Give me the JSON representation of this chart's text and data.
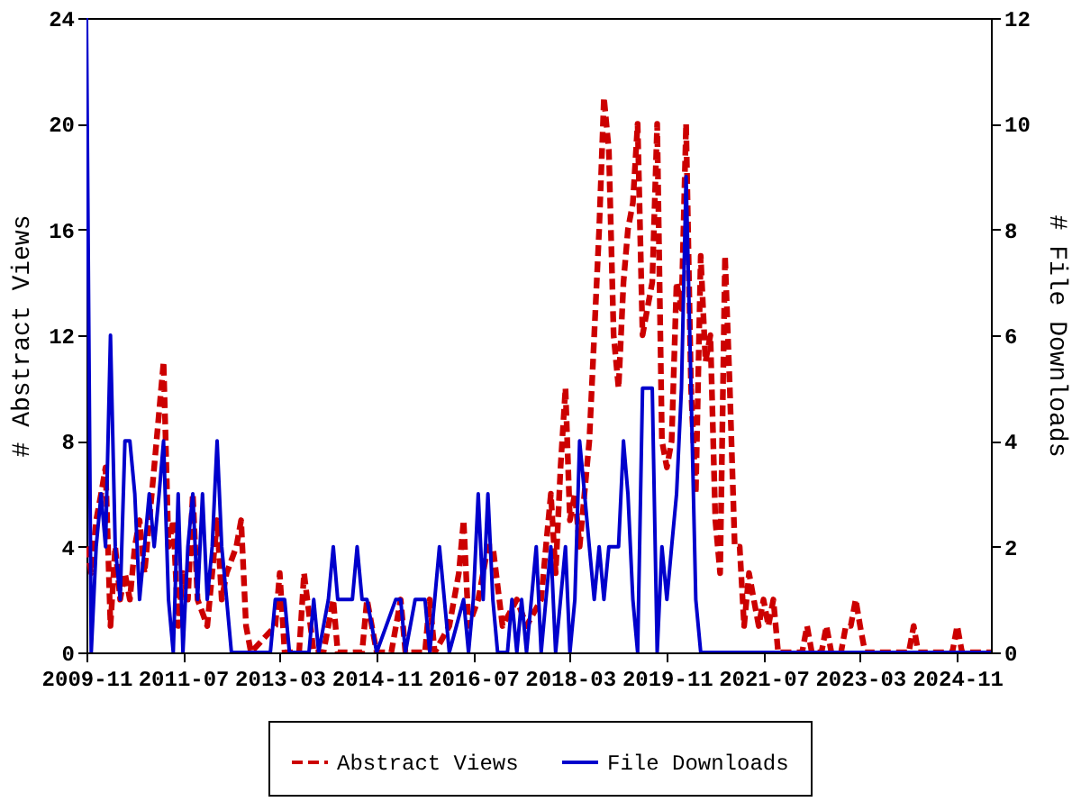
{
  "chart_data": {
    "type": "line",
    "ylabel": "# Abstract Views",
    "y2label": "# File Downloads",
    "xlim": [
      "2009-11",
      "2025-06"
    ],
    "xticks": [
      "2009-11",
      "2011-07",
      "2013-03",
      "2014-11",
      "2016-07",
      "2018-03",
      "2019-11",
      "2021-07",
      "2023-03",
      "2024-11"
    ],
    "ylim": [
      0,
      24
    ],
    "yticks": [
      0,
      4,
      8,
      12,
      16,
      20,
      24
    ],
    "y2lim": [
      0,
      12
    ],
    "y2ticks": [
      0,
      2,
      4,
      6,
      8,
      10,
      12
    ],
    "grid": false,
    "legend": "bottom",
    "series": [
      {
        "name": "Abstract Views",
        "color": "#cc0000",
        "line_style": "dashed",
        "x": [
          "2009-11",
          "2009-12",
          "2010-01",
          "2010-02",
          "2010-03",
          "2010-04",
          "2010-05",
          "2010-06",
          "2010-07",
          "2010-08",
          "2010-09",
          "2010-10",
          "2010-11",
          "2011-01",
          "2011-03",
          "2011-04",
          "2011-05",
          "2011-06",
          "2011-07",
          "2011-08",
          "2011-09",
          "2011-10",
          "2011-12",
          "2012-02",
          "2012-03",
          "2012-04",
          "2012-06",
          "2012-07",
          "2012-08",
          "2012-09",
          "2013-02",
          "2013-03",
          "2013-04",
          "2013-07",
          "2013-08",
          "2013-10",
          "2013-12",
          "2014-02",
          "2014-03",
          "2014-08",
          "2014-09",
          "2014-11",
          "2015-02",
          "2015-04",
          "2015-05",
          "2015-09",
          "2015-10",
          "2015-11",
          "2016-02",
          "2016-04",
          "2016-05",
          "2016-06",
          "2016-08",
          "2016-10",
          "2016-11",
          "2017-01",
          "2017-04",
          "2017-06",
          "2017-09",
          "2017-10",
          "2017-11",
          "2017-12",
          "2018-01",
          "2018-02",
          "2018-03",
          "2018-04",
          "2018-05",
          "2018-07",
          "2018-08",
          "2018-09",
          "2018-10",
          "2018-11",
          "2018-12",
          "2019-01",
          "2019-02",
          "2019-03",
          "2019-04",
          "2019-05",
          "2019-06",
          "2019-07",
          "2019-08",
          "2019-09",
          "2019-10",
          "2019-11",
          "2019-12",
          "2020-01",
          "2020-02",
          "2020-03",
          "2020-04",
          "2020-05",
          "2020-06",
          "2020-07",
          "2020-08",
          "2020-09",
          "2020-10",
          "2020-11",
          "2020-12",
          "2021-01",
          "2021-02",
          "2021-03",
          "2021-04",
          "2021-05",
          "2021-06",
          "2021-07",
          "2021-08",
          "2021-09",
          "2021-10",
          "2022-03",
          "2022-04",
          "2022-05",
          "2022-07",
          "2022-08",
          "2022-09",
          "2022-11",
          "2022-12",
          "2023-01",
          "2023-02",
          "2023-03",
          "2023-04",
          "2024-01",
          "2024-02",
          "2024-03",
          "2024-10",
          "2024-11",
          "2024-12",
          "2025-06"
        ],
        "values": [
          4,
          3,
          5,
          6,
          7,
          1,
          4,
          2,
          3,
          2,
          4,
          5,
          3,
          7,
          11,
          4,
          5,
          1,
          3,
          2,
          6,
          2,
          1,
          5,
          2,
          3,
          4,
          5,
          1,
          0,
          1,
          3,
          0,
          0,
          3,
          0,
          0,
          2,
          0,
          0,
          2,
          0,
          0,
          2,
          0,
          0,
          2,
          0,
          1,
          3,
          5,
          1,
          2,
          4,
          4,
          1,
          2,
          1,
          2,
          4,
          6,
          3,
          7,
          10,
          5,
          6,
          4,
          8,
          12,
          16,
          21,
          19,
          12,
          10,
          14,
          16,
          17,
          20,
          12,
          13,
          14,
          20,
          8,
          7,
          8,
          14,
          13,
          20,
          10,
          6,
          15,
          11,
          12,
          5,
          3,
          15,
          10,
          4,
          4,
          1,
          3,
          2,
          1,
          2,
          1,
          2,
          0,
          0,
          1,
          0,
          0,
          1,
          0,
          0,
          1,
          1,
          2,
          1,
          0,
          0,
          1,
          0,
          0,
          1,
          0,
          0
        ]
      },
      {
        "name": "File Downloads",
        "color": "#0000cc",
        "line_style": "solid",
        "axis": "y2",
        "x": [
          "2009-11",
          "2009-12",
          "2010-01",
          "2010-02",
          "2010-03",
          "2010-04",
          "2010-05",
          "2010-06",
          "2010-07",
          "2010-08",
          "2010-09",
          "2010-10",
          "2010-11",
          "2010-12",
          "2011-01",
          "2011-02",
          "2011-03",
          "2011-04",
          "2011-05",
          "2011-06",
          "2011-07",
          "2011-08",
          "2011-09",
          "2011-10",
          "2011-11",
          "2011-12",
          "2012-01",
          "2012-02",
          "2012-03",
          "2012-04",
          "2012-05",
          "2013-01",
          "2013-02",
          "2013-04",
          "2013-05",
          "2013-09",
          "2013-10",
          "2013-11",
          "2014-01",
          "2014-02",
          "2014-03",
          "2014-06",
          "2014-07",
          "2014-08",
          "2014-09",
          "2014-11",
          "2015-03",
          "2015-04",
          "2015-05",
          "2015-07",
          "2015-09",
          "2015-10",
          "2015-11",
          "2015-12",
          "2016-01",
          "2016-02",
          "2016-05",
          "2016-06",
          "2016-07",
          "2016-08",
          "2016-09",
          "2016-10",
          "2016-11",
          "2016-12",
          "2017-02",
          "2017-03",
          "2017-04",
          "2017-05",
          "2017-06",
          "2017-08",
          "2017-09",
          "2017-10",
          "2017-11",
          "2017-12",
          "2018-01",
          "2018-02",
          "2018-03",
          "2018-04",
          "2018-05",
          "2018-06",
          "2018-07",
          "2018-08",
          "2018-09",
          "2018-10",
          "2018-11",
          "2019-01",
          "2019-02",
          "2019-03",
          "2019-04",
          "2019-05",
          "2019-06",
          "2019-07",
          "2019-08",
          "2019-09",
          "2019-10",
          "2019-11",
          "2019-12",
          "2020-01",
          "2020-02",
          "2020-03",
          "2020-04",
          "2020-05",
          "2020-06",
          "2025-06"
        ],
        "values": [
          12,
          0,
          2,
          3,
          2,
          6,
          2,
          1,
          4,
          4,
          3,
          1,
          2,
          3,
          2,
          3,
          4,
          1,
          0,
          3,
          0,
          2,
          3,
          1,
          3,
          1,
          2,
          4,
          2,
          1,
          0,
          0,
          1,
          1,
          0,
          0,
          1,
          0,
          1,
          2,
          1,
          1,
          2,
          1,
          1,
          0,
          1,
          1,
          0,
          1,
          1,
          0,
          1,
          2,
          1,
          0,
          1,
          0,
          1,
          3,
          1,
          3,
          1,
          0,
          0,
          1,
          0,
          1,
          0,
          2,
          0,
          1,
          2,
          0,
          1,
          2,
          0,
          1,
          4,
          3,
          2,
          1,
          2,
          1,
          2,
          2,
          4,
          3,
          1,
          0,
          5,
          5,
          5,
          0,
          2,
          1,
          2,
          3,
          5,
          9,
          5,
          1,
          0,
          0
        ]
      }
    ]
  }
}
